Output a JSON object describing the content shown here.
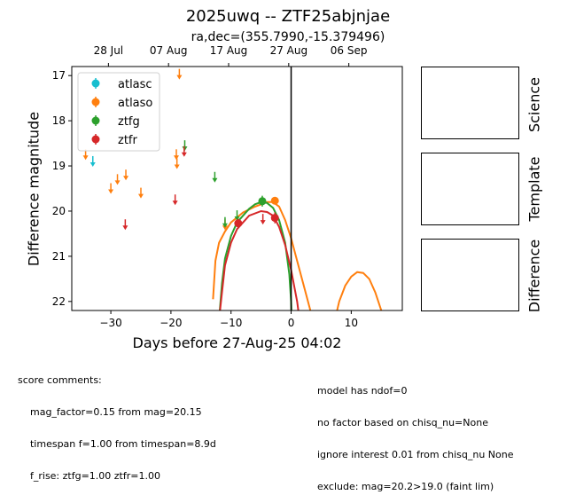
{
  "chart_data": {
    "type": "scatter",
    "title": "2025uwq -- ZTF25abjnjae",
    "subtitle": "ra,dec=(355.7990,-15.379496)",
    "xlabel": "Days before 27-Aug-25 04:02",
    "ylabel": "Difference magnitude",
    "xlim": [
      -36.5,
      18.5
    ],
    "ylim": [
      22.2,
      16.8
    ],
    "y_inverted": true,
    "x_ticks": [
      -30,
      -20,
      -10,
      0,
      10
    ],
    "x_tick_labels": [
      "−30",
      "−20",
      "−10",
      "0",
      "10"
    ],
    "y_ticks": [
      17,
      18,
      19,
      20,
      21,
      22
    ],
    "top_axis_ticks": [
      {
        "x": -30.4,
        "label": "28 Jul"
      },
      {
        "x": -20.4,
        "label": "07 Aug"
      },
      {
        "x": -10.4,
        "label": "17 Aug"
      },
      {
        "x": -0.4,
        "label": "27 Aug"
      },
      {
        "x": 9.6,
        "label": "06 Sep"
      }
    ],
    "vline_x": 0,
    "legend_position": "upper-left",
    "series": [
      {
        "name": "atlasc",
        "color": "#17becf",
        "detections": [],
        "upper_limits": [
          {
            "x": -33.0,
            "y": 18.9
          }
        ]
      },
      {
        "name": "atlaso",
        "color": "#ff7f0e",
        "detections": [
          {
            "x": -2.7,
            "y": 19.77,
            "err": 0.05
          }
        ],
        "upper_limits": [
          {
            "x": -34.2,
            "y": 18.75
          },
          {
            "x": -30.0,
            "y": 19.5
          },
          {
            "x": -28.9,
            "y": 19.3
          },
          {
            "x": -27.5,
            "y": 19.2
          },
          {
            "x": -25.0,
            "y": 19.6
          },
          {
            "x": -19.1,
            "y": 18.75
          },
          {
            "x": -19.0,
            "y": 18.95
          },
          {
            "x": -18.6,
            "y": 16.97
          },
          {
            "x": -11.0,
            "y": 20.3
          }
        ]
      },
      {
        "name": "ztfg",
        "color": "#2ca02c",
        "detections": [
          {
            "x": -4.8,
            "y": 19.78,
            "err": 0.12
          }
        ],
        "upper_limits": [
          {
            "x": -17.7,
            "y": 18.55
          },
          {
            "x": -12.7,
            "y": 19.25
          },
          {
            "x": -11.0,
            "y": 20.25
          },
          {
            "x": -9.0,
            "y": 20.1
          }
        ]
      },
      {
        "name": "ztfr",
        "color": "#d62728",
        "detections": [
          {
            "x": -8.8,
            "y": 20.27,
            "err": 0.1
          },
          {
            "x": -2.7,
            "y": 20.15,
            "err": 0.12
          }
        ],
        "upper_limits": [
          {
            "x": -27.6,
            "y": 20.3
          },
          {
            "x": -19.3,
            "y": 19.75
          },
          {
            "x": -17.8,
            "y": 18.68
          },
          {
            "x": -4.7,
            "y": 20.18
          }
        ]
      }
    ],
    "model_curves": [
      {
        "series": "atlaso",
        "color": "#ff7f0e",
        "points": [
          [
            -13,
            21.95
          ],
          [
            -12.6,
            21.1
          ],
          [
            -12,
            20.7
          ],
          [
            -11,
            20.45
          ],
          [
            -10,
            20.25
          ],
          [
            -8,
            20.03
          ],
          [
            -6,
            19.9
          ],
          [
            -4,
            19.8
          ],
          [
            -3,
            19.8
          ],
          [
            -2,
            19.9
          ],
          [
            -1,
            20.2
          ],
          [
            0,
            20.6
          ],
          [
            1,
            21.1
          ],
          [
            2,
            21.6
          ],
          [
            3,
            22.1
          ],
          [
            3.6,
            22.4
          ]
        ]
      },
      {
        "series": "atlaso",
        "color": "#ff7f0e",
        "points": [
          [
            7.3,
            22.4
          ],
          [
            8,
            22.0
          ],
          [
            9,
            21.65
          ],
          [
            10,
            21.45
          ],
          [
            11,
            21.35
          ],
          [
            12,
            21.37
          ],
          [
            13,
            21.5
          ],
          [
            14,
            21.8
          ],
          [
            15,
            22.2
          ],
          [
            15.4,
            22.4
          ]
        ]
      },
      {
        "series": "ztfg",
        "color": "#2ca02c",
        "points": [
          [
            -12,
            22.4
          ],
          [
            -11.5,
            21.6
          ],
          [
            -11,
            21.05
          ],
          [
            -10,
            20.55
          ],
          [
            -9,
            20.25
          ],
          [
            -7,
            19.95
          ],
          [
            -6,
            19.85
          ],
          [
            -5,
            19.8
          ],
          [
            -4,
            19.82
          ],
          [
            -3,
            19.93
          ],
          [
            -2,
            20.2
          ],
          [
            -1,
            20.7
          ],
          [
            -0.3,
            21.4
          ],
          [
            0,
            22.0
          ],
          [
            0.1,
            22.4
          ]
        ]
      },
      {
        "series": "ztfr",
        "color": "#d62728",
        "points": [
          [
            -12,
            22.4
          ],
          [
            -11.5,
            21.8
          ],
          [
            -11,
            21.2
          ],
          [
            -10,
            20.7
          ],
          [
            -9,
            20.4
          ],
          [
            -7,
            20.1
          ],
          [
            -5,
            20.0
          ],
          [
            -4,
            20.02
          ],
          [
            -3,
            20.1
          ],
          [
            -2,
            20.35
          ],
          [
            -1,
            20.75
          ],
          [
            0,
            21.3
          ],
          [
            1,
            22.0
          ],
          [
            1.4,
            22.4
          ]
        ]
      }
    ]
  },
  "side_panels": {
    "science_label": "Science",
    "template_label": "Template",
    "difference_label": "Difference"
  },
  "score_comments": [
    "score comments:",
    "    mag_factor=0.15 from mag=20.15",
    "    timespan f=1.00 from timespan=8.9d",
    "    f_rise: ztfg=1.00 ztfr=1.00"
  ],
  "model_comments": [
    "model has ndof=0",
    "no factor based on chisq_nu=None",
    "ignore interest 0.01 from chisq_nu None",
    "exclude: mag=20.2>19.0 (faint lim)"
  ]
}
